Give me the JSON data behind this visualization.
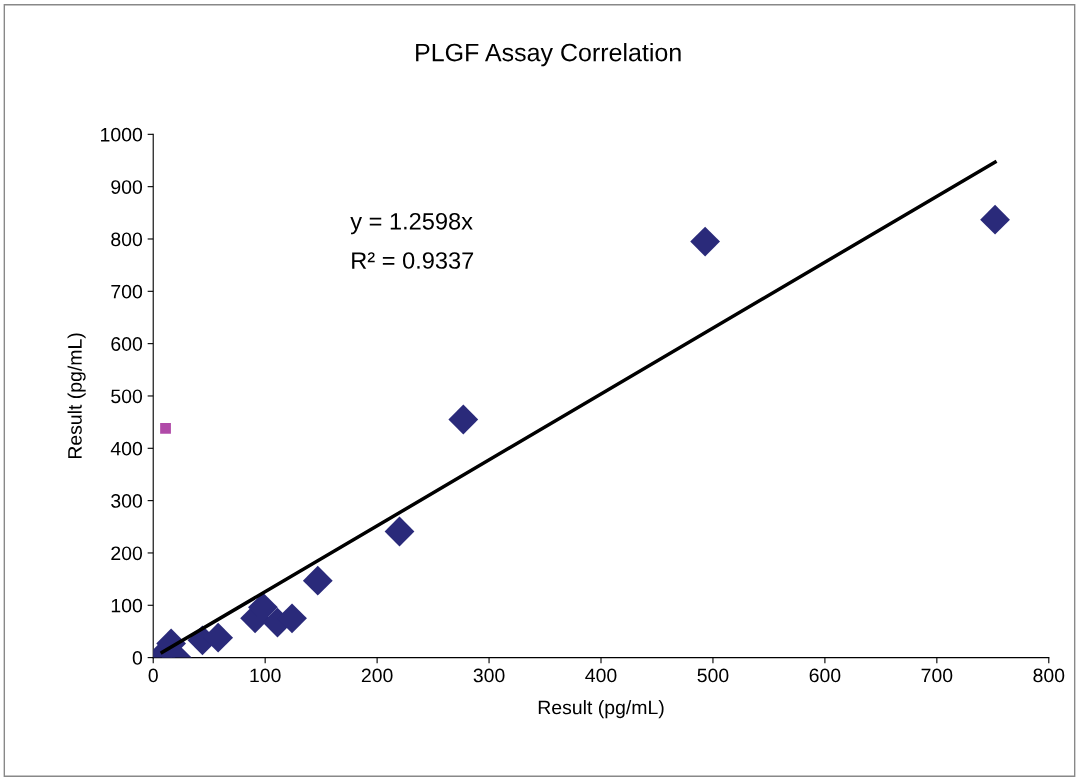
{
  "chart_data": {
    "type": "scatter",
    "title": "PLGF Assay Correlation",
    "xlabel": "Result (pg/mL)",
    "ylabel": "Result (pg/mL)",
    "series": [
      {
        "marker": "diamond",
        "color": "#2a2a7a",
        "x": [
          8,
          16,
          21,
          44,
          58,
          91,
          98,
          111,
          124,
          147,
          220,
          277,
          493,
          752
        ],
        "values": [
          4,
          27,
          0,
          33,
          38,
          75,
          96,
          67,
          75,
          147,
          241,
          455,
          795,
          837
        ]
      },
      {
        "marker": "square",
        "color": "#b04aa8",
        "x": [
          11
        ],
        "values": [
          438
        ]
      },
      {
        "type": "line",
        "marker": "none",
        "color": "#000000",
        "x": [
          8,
          752
        ],
        "values": [
          10,
          947
        ]
      }
    ],
    "annotations": [
      "y = 1.2598x",
      "R² = 0.9337"
    ],
    "xlim": [
      0,
      800
    ],
    "xticks": [
      0,
      100,
      200,
      300,
      400,
      500,
      600,
      700,
      800
    ],
    "ylim": [
      0,
      1000
    ],
    "yticks": [
      0,
      100,
      200,
      300,
      400,
      500,
      600,
      700,
      800,
      900,
      1000
    ],
    "grid": false,
    "legend": false
  }
}
